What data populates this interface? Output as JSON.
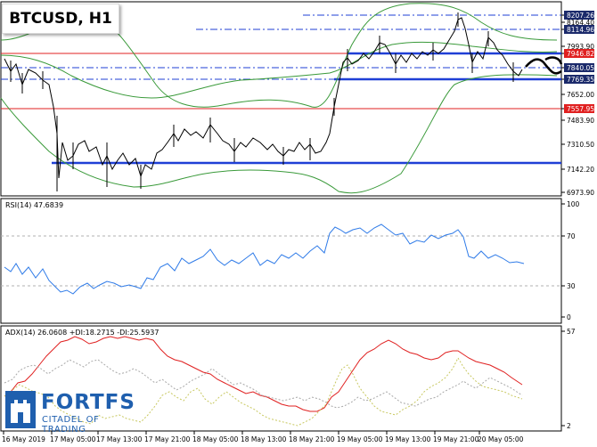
{
  "title": "BTCUSD, H1",
  "logo": {
    "name": "FORTFS",
    "tagline": "CITADEL OF TRADING",
    "icon": "fortress-logo-icon"
  },
  "colors": {
    "price_line_blue": "#1f3fd6",
    "level_red": "#e02020",
    "band_green": "#3a9a3a",
    "rsi_blue": "#2f7be8",
    "adx_red": "#e02020",
    "di_olive": "#b8b820"
  },
  "price_axis": {
    "labels": [
      "8207.26",
      "8164.40",
      "8114.96",
      "7993.90",
      "7946.82",
      "7840.05",
      "7769.35",
      "7652.00",
      "7557.95",
      "7483.90",
      "7310.50",
      "7142.20",
      "6973.90"
    ],
    "highlighted": [
      {
        "value": "8207.26",
        "style": "dark"
      },
      {
        "value": "8114.96",
        "style": "dark"
      },
      {
        "value": "7946.82",
        "style": "red"
      },
      {
        "value": "7840.05",
        "style": "dark"
      },
      {
        "value": "7769.35",
        "style": "dark"
      },
      {
        "value": "7557.95",
        "style": "red"
      }
    ]
  },
  "rsi": {
    "label": "RSI(14) 47.6839",
    "axis": [
      "100",
      "70",
      "30",
      "0"
    ],
    "levels": [
      70,
      30
    ]
  },
  "adx": {
    "label": "ADX(14) 26.0608 +DI:18.2715 -DI:25.5937",
    "axis": [
      "57",
      "2"
    ]
  },
  "time_axis": [
    "16 May 2019",
    "17 May 05:00",
    "17 May 13:00",
    "17 May 21:00",
    "18 May 05:00",
    "18 May 13:00",
    "18 May 21:00",
    "19 May 05:00",
    "19 May 13:00",
    "19 May 21:00",
    "20 May 05:00"
  ]
}
